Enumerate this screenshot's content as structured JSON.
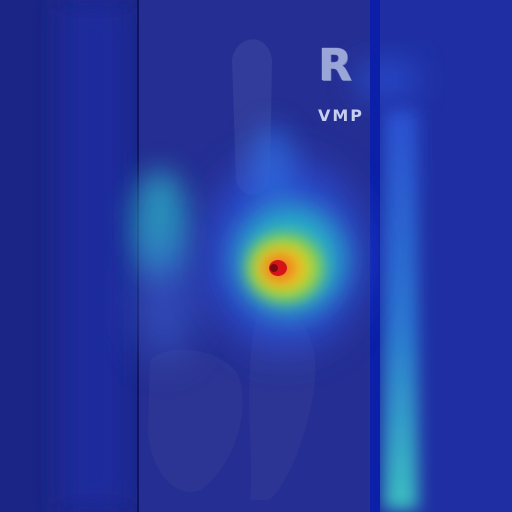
{
  "image": {
    "type": "x-ray-heatmap-overlay",
    "side_marker": "R",
    "view_code": "VMP",
    "colors": {
      "background": "#1e2b8f",
      "film": "#2a3196",
      "hot": "#d4141a",
      "warm": "#f0d020",
      "mild": "#2bb0c8"
    }
  }
}
